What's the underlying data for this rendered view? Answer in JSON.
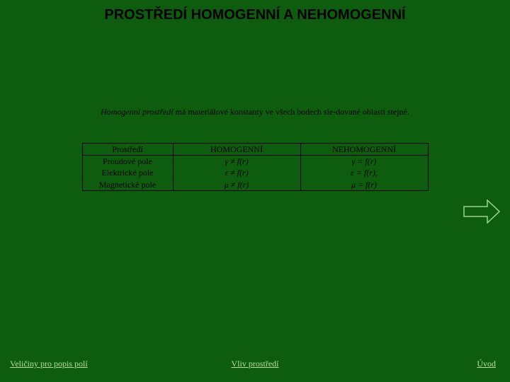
{
  "colors": {
    "background": "#0e5d0e",
    "title": "#000000",
    "body_text": "#000000",
    "table_border": "#000000",
    "link": "#b7df9b",
    "arrow_stroke": "#9bd48f"
  },
  "fontsizes": {
    "title_pt": 20,
    "body_pt": 12,
    "table_pt": 12,
    "footer_pt": 12
  },
  "title": "PROSTŘEDÍ HOMOGENNÍ A NEHOMOGENNÍ",
  "description": {
    "italic": "Homogenní prostředí",
    "rest": " má materiálové konstanty ve všech bodech sle-dované oblasti stejné."
  },
  "table": {
    "header": [
      "Prostředí",
      "HOMOGENNÍ",
      "NEHOMOGENNÍ"
    ],
    "rows": [
      [
        "Proudové pole",
        "γ ≠ f(r)",
        "γ = f(r)"
      ],
      [
        "Elektrické pole",
        "ε ≠ f(r)",
        "ε = f(r),"
      ],
      [
        "Magnetické pole",
        "μ ≠ f(r)",
        "μ = f(r)"
      ]
    ]
  },
  "arrow": {
    "width": 52,
    "height": 34,
    "stroke_width": 1.5
  },
  "footer": {
    "left": "Veličiny pro popis polí",
    "center": "Vliv prostředí",
    "right": "Úvod"
  }
}
